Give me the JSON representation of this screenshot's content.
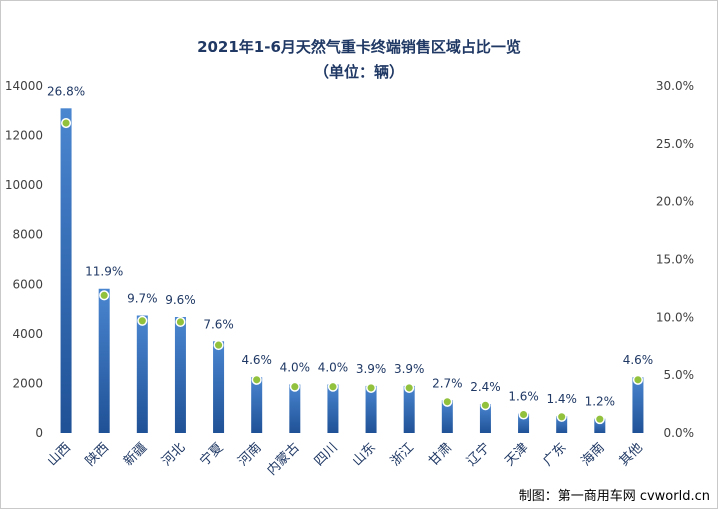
{
  "chart_data": {
    "type": "bar",
    "title": "2021年1-6月天然气重卡终端销售区域占比一览",
    "subtitle": "（单位：辆）",
    "categories": [
      "山西",
      "陕西",
      "新疆",
      "河北",
      "宁夏",
      "河南",
      "内蒙古",
      "四川",
      "山东",
      "浙江",
      "甘肃",
      "辽宁",
      "天津",
      "广东",
      "海南",
      "其他"
    ],
    "series": [
      {
        "type": "bar",
        "axis": "left",
        "values": [
          13100,
          5820,
          4740,
          4680,
          3700,
          2250,
          1960,
          1960,
          1900,
          1900,
          1320,
          1170,
          780,
          680,
          580,
          2250
        ]
      },
      {
        "type": "line-markers",
        "axis": "right",
        "values": [
          26.8,
          11.9,
          9.7,
          9.6,
          7.6,
          4.6,
          4.0,
          4.0,
          3.9,
          3.9,
          2.7,
          2.4,
          1.6,
          1.4,
          1.2,
          4.6
        ]
      }
    ],
    "data_labels": [
      "26.8%",
      "11.9%",
      "9.7%",
      "9.6%",
      "7.6%",
      "4.6%",
      "4.0%",
      "4.0%",
      "3.9%",
      "3.9%",
      "2.7%",
      "2.4%",
      "1.6%",
      "1.4%",
      "1.2%",
      "4.6%"
    ],
    "y_left": {
      "lim": [
        0,
        14000
      ],
      "ticks": [
        "0",
        "2000",
        "4000",
        "6000",
        "8000",
        "10000",
        "12000",
        "14000"
      ]
    },
    "y_right": {
      "lim": [
        0,
        30
      ],
      "ticks": [
        "0.0%",
        "5.0%",
        "10.0%",
        "15.0%",
        "20.0%",
        "25.0%",
        "30.0%"
      ]
    },
    "grid": false,
    "legend": "none",
    "colors": {
      "bar_top": "#4a86d0",
      "bar_bottom": "#1f5196",
      "marker": "#92c13e",
      "title": "#1f3864"
    }
  },
  "credit": "制图：第一商用车网 cvworld.cn"
}
